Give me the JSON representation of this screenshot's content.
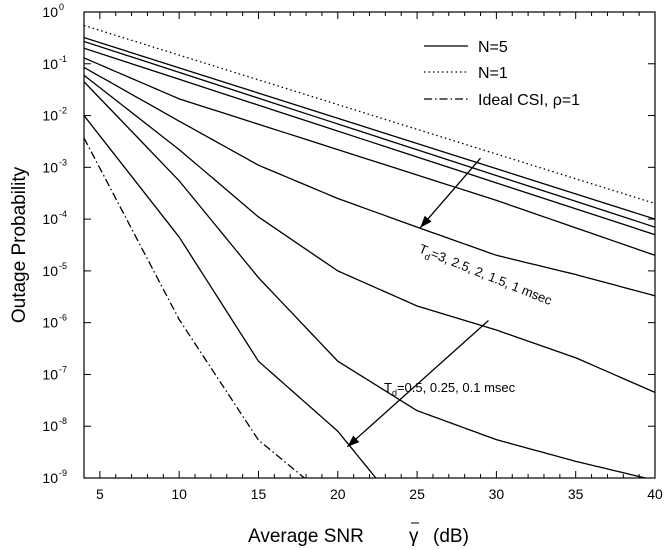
{
  "chart_data": {
    "type": "line",
    "xlabel": "Average SNR",
    "xlabel_symbol": "γ",
    "xlabel_unit": "(dB)",
    "ylabel": "Outage Probability",
    "xlim": [
      4,
      40
    ],
    "ylim_exponent": [
      -9,
      0
    ],
    "yscale": "log",
    "x_ticks": [
      5,
      10,
      15,
      20,
      25,
      30,
      35,
      40
    ],
    "y_ticks": [
      {
        "base": "10",
        "exp": "0"
      },
      {
        "base": "10",
        "exp": "-1"
      },
      {
        "base": "10",
        "exp": "-2"
      },
      {
        "base": "10",
        "exp": "-3"
      },
      {
        "base": "10",
        "exp": "-4"
      },
      {
        "base": "10",
        "exp": "-5"
      },
      {
        "base": "10",
        "exp": "-6"
      },
      {
        "base": "10",
        "exp": "-7"
      },
      {
        "base": "10",
        "exp": "-8"
      },
      {
        "base": "10",
        "exp": "-9"
      }
    ],
    "legend": {
      "placement": "top-right",
      "entries": [
        {
          "label": "N=5",
          "style": "solid"
        },
        {
          "label": "N=1",
          "style": "dotted"
        },
        {
          "label_prefix": "Ideal CSI, ",
          "label_symbol": "ρ",
          "label_suffix": "=1",
          "style": "dashdot"
        }
      ]
    },
    "series": [
      {
        "style": "dotted",
        "points": [
          [
            4,
            0.55
          ],
          [
            40,
            0.0002
          ]
        ]
      },
      {
        "style": "solid",
        "points": [
          [
            4,
            0.32
          ],
          [
            40,
            0.0001
          ]
        ]
      },
      {
        "style": "solid",
        "points": [
          [
            4,
            0.27
          ],
          [
            40,
            7e-05
          ]
        ]
      },
      {
        "style": "solid",
        "points": [
          [
            4,
            0.2
          ],
          [
            40,
            5e-05
          ]
        ]
      },
      {
        "style": "solid",
        "points": [
          [
            4,
            0.13
          ],
          [
            10,
            0.021
          ],
          [
            20,
            0.0022
          ],
          [
            30,
            0.00023
          ],
          [
            40,
            2e-05
          ]
        ]
      },
      {
        "style": "solid",
        "points": [
          [
            4,
            0.085
          ],
          [
            10,
            0.0078
          ],
          [
            15,
            0.0011
          ],
          [
            20,
            0.00025
          ],
          [
            25,
            7e-05
          ],
          [
            30,
            2e-05
          ],
          [
            35,
            8.5e-06
          ],
          [
            40,
            3.3e-06
          ]
        ]
      },
      {
        "style": "solid",
        "points": [
          [
            4,
            0.06
          ],
          [
            10,
            0.0022
          ],
          [
            15,
            0.00011
          ],
          [
            20,
            1e-05
          ],
          [
            25,
            2.1e-06
          ],
          [
            30,
            7.2e-07
          ],
          [
            35,
            2.1e-07
          ],
          [
            40,
            4.5e-08
          ]
        ]
      },
      {
        "style": "solid",
        "points": [
          [
            4,
            0.045
          ],
          [
            10,
            0.00055
          ],
          [
            15,
            7.4e-06
          ],
          [
            20,
            1.8e-07
          ],
          [
            25,
            2e-08
          ],
          [
            30,
            5.5e-09
          ],
          [
            35,
            2.1e-09
          ],
          [
            40,
            9e-10
          ]
        ]
      },
      {
        "style": "solid",
        "points": [
          [
            4,
            0.01
          ],
          [
            10,
            4.5e-05
          ],
          [
            15,
            1.8e-07
          ],
          [
            20,
            8e-09
          ],
          [
            22.4,
            1e-09
          ]
        ]
      },
      {
        "style": "dashdot",
        "points": [
          [
            4,
            0.0037
          ],
          [
            10,
            1.15e-06
          ],
          [
            15,
            5.4e-09
          ],
          [
            17.9,
            1e-09
          ]
        ]
      }
    ],
    "annotations": [
      {
        "prefix": "T",
        "subscript": "d",
        "text": "=3, 2.5, 2, 1.5, 1 msec"
      },
      {
        "prefix": "T",
        "subscript": "d",
        "text": "=0.5, 0.25, 0.1 msec"
      }
    ],
    "arrows": [
      {
        "from": [
          29.0,
          0.0015
        ],
        "to": [
          25.2,
          6.8e-05
        ]
      },
      {
        "from": [
          29.5,
          1.1e-06
        ],
        "to": [
          20.6,
          4e-09
        ]
      }
    ]
  }
}
